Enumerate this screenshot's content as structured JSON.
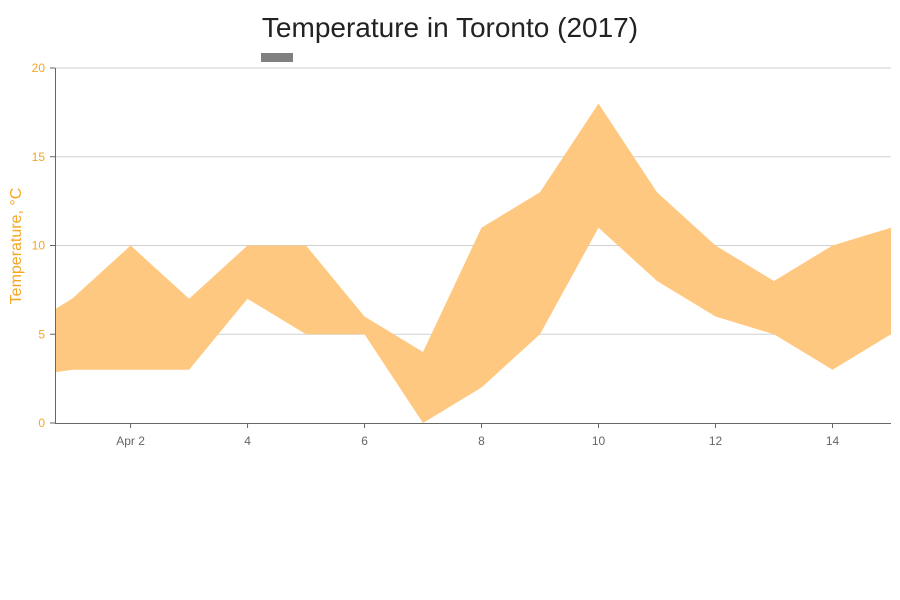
{
  "chart_data": {
    "type": "area",
    "title": "Temperature in Toronto (2017)",
    "xlabel": "",
    "ylabel": "Temperature, °C",
    "x": [
      "2017-03-31",
      "2017-04-01",
      "2017-04-02",
      "2017-04-03",
      "2017-04-04",
      "2017-04-05",
      "2017-04-06",
      "2017-04-07",
      "2017-04-08",
      "2017-04-09",
      "2017-04-10",
      "2017-04-11",
      "2017-04-12",
      "2017-04-13",
      "2017-04-14",
      "2017-04-15"
    ],
    "xlim": [
      "2017-03-31T17:00",
      "2017-04-15T00:00"
    ],
    "x_tick_labels": [
      {
        "date": "2017-04-02",
        "label": "Apr 2"
      },
      {
        "date": "2017-04-04",
        "label": "4"
      },
      {
        "date": "2017-04-06",
        "label": "6"
      },
      {
        "date": "2017-04-08",
        "label": "8"
      },
      {
        "date": "2017-04-10",
        "label": "10"
      },
      {
        "date": "2017-04-12",
        "label": "12"
      },
      {
        "date": "2017-04-14",
        "label": "14"
      }
    ],
    "ylim": [
      0,
      20
    ],
    "y_ticks": [
      0,
      5,
      10,
      15,
      20
    ],
    "grid": true,
    "series": [
      {
        "kind": "range",
        "low": [
          2.5,
          3,
          3,
          3,
          7,
          5,
          5,
          0,
          2,
          5,
          11,
          8,
          6,
          5,
          3,
          5
        ],
        "high": [
          5,
          7,
          10,
          7,
          10,
          10,
          6,
          4,
          11,
          13,
          18,
          13,
          10,
          8,
          10,
          11
        ]
      }
    ],
    "legend": "top-left",
    "colors": {
      "fill": "#FFC880",
      "axis_accent": "#F5A623",
      "grid": "#D0D0D0",
      "axis_line": "#666666",
      "legend_swatch": "#808080"
    }
  }
}
